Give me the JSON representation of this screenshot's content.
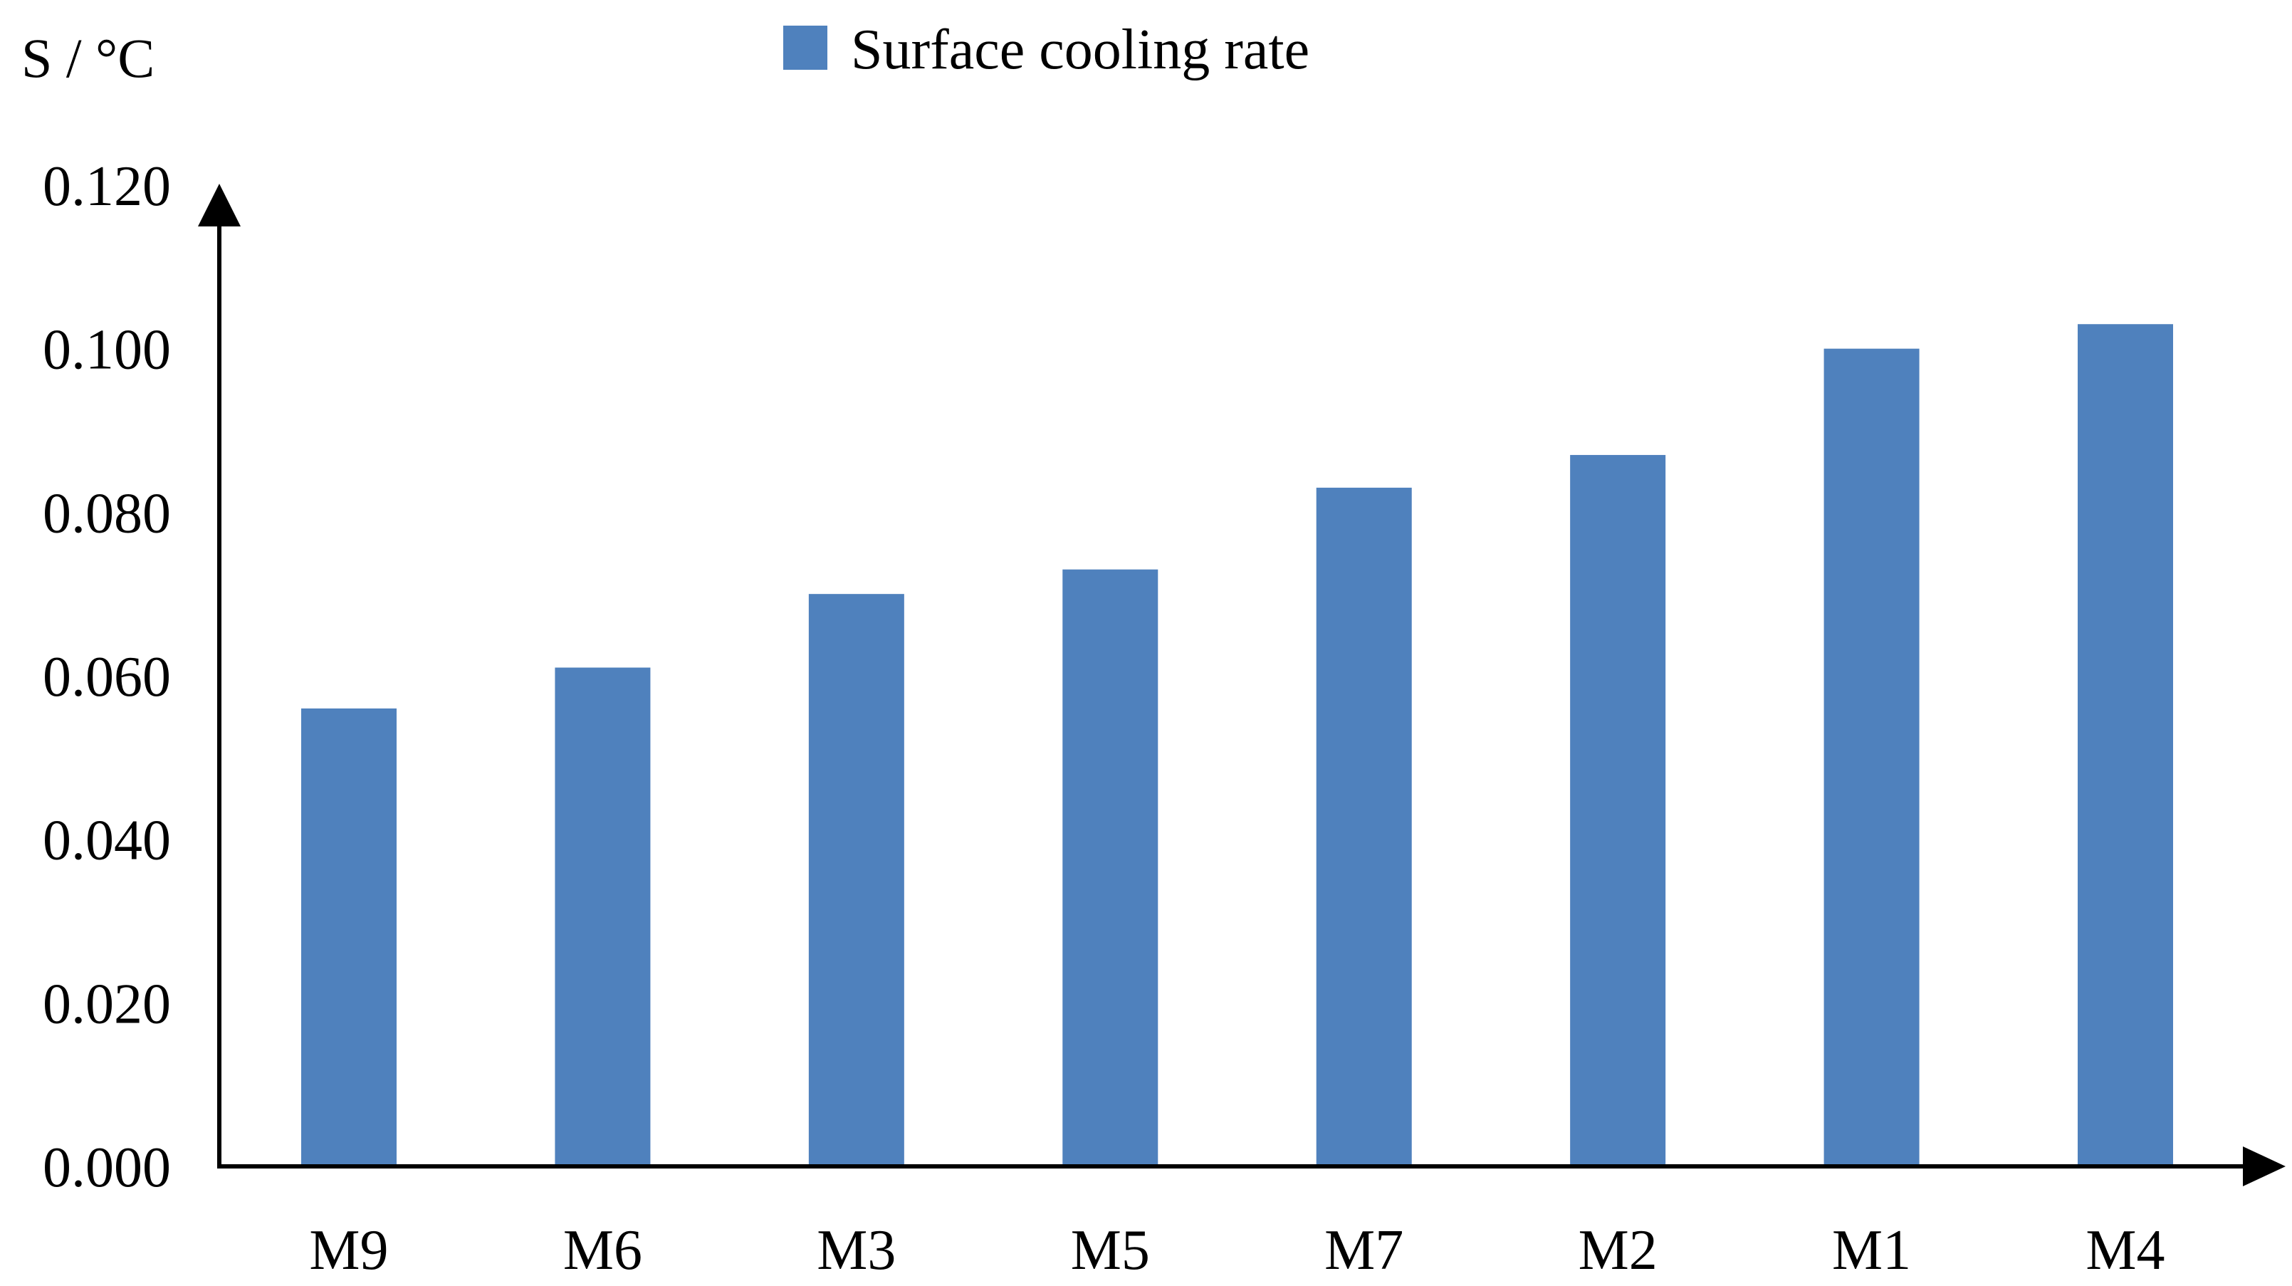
{
  "chart_data": {
    "type": "bar",
    "title": "",
    "ylabel": "S / °C",
    "xlabel": "",
    "categories": [
      "M9",
      "M6",
      "M3",
      "M5",
      "M7",
      "M2",
      "M1",
      "M4"
    ],
    "series": [
      {
        "name": "Surface cooling rate",
        "values": [
          0.056,
          0.061,
          0.07,
          0.073,
          0.083,
          0.087,
          0.1,
          0.103
        ],
        "color": "#4F81BD"
      }
    ],
    "ylim": [
      0,
      0.12
    ],
    "yticks": [
      "0.000",
      "0.020",
      "0.040",
      "0.060",
      "0.080",
      "0.100",
      "0.120"
    ],
    "grid": false,
    "legend_position": "top-center",
    "axis_color": "#000000"
  }
}
